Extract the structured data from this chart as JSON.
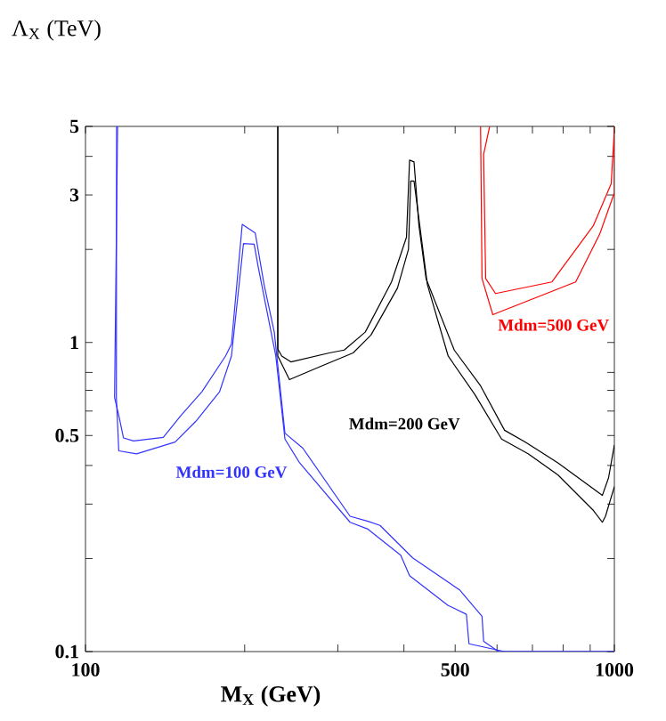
{
  "chart_data": {
    "type": "line",
    "xlabel": "M$_{X}$ (GeV)",
    "ylabel": "Λ$_{X}$ (TeV)",
    "log": "xy",
    "xlim": [
      100,
      1000
    ],
    "ylim": [
      0.1,
      5
    ],
    "xticks": [
      100,
      {
        "value": 200,
        "label": null
      },
      {
        "value": 300,
        "label": null
      },
      {
        "value": 400,
        "label": null
      },
      500,
      {
        "value": 600,
        "label": null
      },
      {
        "value": 700,
        "label": null
      },
      {
        "value": 800,
        "label": null
      },
      {
        "value": 900,
        "label": null
      },
      1000
    ],
    "yticks": [
      0.1,
      {
        "value": 0.2,
        "label": null
      },
      {
        "value": 0.3,
        "label": null
      },
      {
        "value": 0.4,
        "label": null
      },
      0.5,
      {
        "value": 0.6,
        "label": null
      },
      {
        "value": 0.7,
        "label": null
      },
      {
        "value": 0.8,
        "label": null
      },
      1,
      {
        "value": 2,
        "label": null
      },
      3,
      {
        "value": 4,
        "label": null
      },
      5
    ],
    "series": [
      {
        "name": "Mdm=100 GeV",
        "color": "#3333ff",
        "x": [
          115,
          113.5,
          115.6,
          118,
          123.3,
          140.3,
          151.6,
          166,
          184,
          188.8,
          197.9,
          209.4,
          217.6,
          227.5,
          238.3,
          257.6,
          316.5,
          342,
          360.5,
          415.6,
          510.5,
          562,
          566,
          604,
          1000
        ],
        "values": [
          5,
          0.664,
          0.581,
          0.491,
          0.48,
          0.493,
          0.581,
          0.693,
          0.904,
          0.988,
          2.41,
          2.26,
          1.54,
          1.08,
          0.509,
          0.455,
          0.274,
          0.264,
          0.256,
          0.201,
          0.158,
          0.13,
          0.108,
          0.1,
          0.1
        ]
      },
      {
        "color": "#3333ff",
        "x": [
          114.5,
          114.4,
          115.6,
          124.9,
          147.7,
          161.7,
          179.3,
          188.8,
          199,
          208.4,
          212.2,
          229,
          238.3,
          254,
          316.5,
          342,
          394.5,
          410,
          485,
          525,
          531,
          620,
          1000
        ],
        "values": [
          5,
          0.664,
          0.446,
          0.436,
          0.476,
          0.556,
          0.693,
          0.904,
          2.09,
          2.08,
          1.75,
          0.904,
          0.487,
          0.408,
          0.262,
          0.249,
          0.205,
          0.176,
          0.141,
          0.132,
          0.106,
          0.1,
          0.1
        ]
      },
      {
        "name": "Mdm=200 GeV",
        "color": "#000000",
        "x": [
          231,
          231,
          235,
          244.5,
          289,
          308.5,
          338,
          379,
          404.5,
          410,
          418,
          427,
          440.5,
          498,
          558.5,
          620,
          679,
          782,
          949,
          975,
          1000
        ],
        "values": [
          5,
          0.953,
          0.904,
          0.865,
          0.925,
          0.945,
          1.08,
          1.57,
          2.19,
          3.89,
          3.84,
          2.39,
          1.61,
          0.945,
          0.724,
          0.52,
          0.476,
          0.408,
          0.32,
          0.365,
          0.466
        ]
      },
      {
        "color": "#000000",
        "x": [
          231,
          231,
          243,
          278,
          320.6,
          346.6,
          389,
          408,
          412,
          418,
          443,
          485,
          545,
          612,
          688,
          782,
          913,
          949,
          962,
          1000
        ],
        "values": [
          5,
          0.904,
          0.758,
          0.836,
          0.925,
          1.057,
          1.5,
          2.0,
          3.33,
          3.33,
          1.54,
          0.904,
          0.678,
          0.487,
          0.436,
          0.373,
          0.286,
          0.262,
          0.274,
          0.342
        ]
      },
      {
        "name": "Mdm=500 GeV",
        "color": "#ff0000",
        "x": [
          558.5,
          562,
          589,
          845,
          938,
          1000,
          1000
        ],
        "values": [
          5,
          1.61,
          1.23,
          1.57,
          2.24,
          3.05,
          5
        ]
      },
      {
        "color": "#ff0000",
        "x": [
          581,
          566,
          571,
          596,
          762,
          913,
          986,
          1000
        ],
        "values": [
          5,
          4.06,
          1.61,
          1.44,
          1.57,
          2.39,
          3.26,
          4.86
        ]
      }
    ]
  }
}
